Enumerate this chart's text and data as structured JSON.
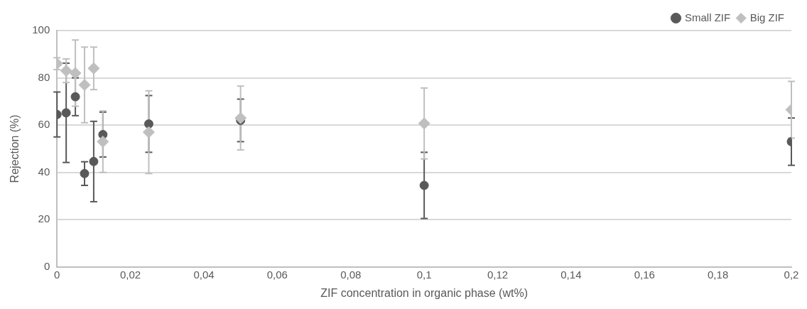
{
  "chart_data": {
    "type": "scatter",
    "xlabel": "ZIF concentration in organic phase (wt%)",
    "ylabel": "Rejection (%)",
    "xlim": [
      0,
      0.2
    ],
    "ylim": [
      0,
      100
    ],
    "xticks": [
      0,
      {
        "value": 0.02,
        "label": "0,02"
      },
      {
        "value": 0.04,
        "label": "0,04"
      },
      {
        "value": 0.06,
        "label": "0,06"
      },
      {
        "value": 0.08,
        "label": "0,08"
      },
      {
        "value": 0.1,
        "label": "0,1"
      },
      {
        "value": 0.12,
        "label": "0,12"
      },
      {
        "value": 0.14,
        "label": "0,14"
      },
      {
        "value": 0.16,
        "label": "0,16"
      },
      {
        "value": 0.18,
        "label": "0,18"
      },
      {
        "value": 0.2,
        "label": "0,2"
      }
    ],
    "yticks": [
      0,
      20,
      40,
      60,
      80,
      100
    ],
    "grid": "y",
    "legend": "top right",
    "x": [
      0,
      0.0025,
      0.005,
      0.0075,
      0.01,
      0.0125,
      0.025,
      0.05,
      0.1,
      0.2
    ],
    "series": [
      {
        "name": "Small ZIF",
        "color": "#595959",
        "marker": "circle",
        "values": [
          64.5,
          65.2,
          72,
          39.5,
          44.6,
          56,
          60.5,
          62,
          34.5,
          53
        ],
        "errors": [
          9.5,
          21,
          8,
          5,
          17,
          9.5,
          12,
          9,
          14,
          10
        ]
      },
      {
        "name": "Big ZIF",
        "color": "#bfbfbf",
        "marker": "diamond",
        "values": [
          86,
          83,
          82,
          77,
          84,
          53,
          57,
          63,
          60.7,
          66.5
        ],
        "errors": [
          2.5,
          5,
          14,
          16,
          9,
          13,
          17.5,
          13.5,
          15,
          12
        ]
      }
    ]
  }
}
